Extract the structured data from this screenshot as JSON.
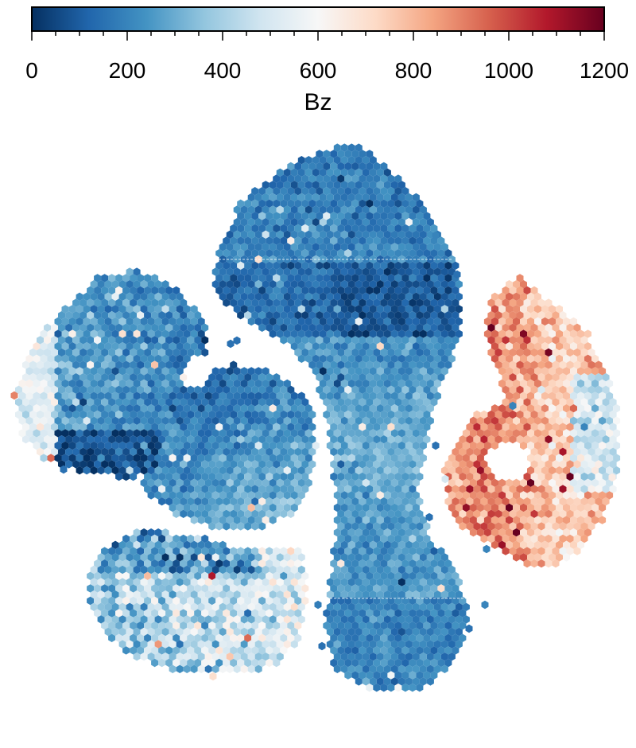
{
  "chart_data": {
    "type": "heatmap",
    "subtype": "hexbin-embedding",
    "title": "",
    "xlabel": "",
    "ylabel": "",
    "colorbar": {
      "label": "Bz",
      "orientation": "horizontal",
      "placement": "top",
      "range": [
        0,
        1200
      ],
      "ticks": [
        0,
        200,
        400,
        600,
        800,
        1000,
        1200
      ],
      "tick_labels": [
        "0",
        "200",
        "400",
        "600",
        "800",
        "1000",
        "1200"
      ],
      "colormap": "RdBu_r",
      "stops": [
        "#053061",
        "#2166ac",
        "#4393c3",
        "#92c5de",
        "#d1e5f0",
        "#f7f7f7",
        "#fddbc7",
        "#f4a582",
        "#d6604d",
        "#b2182b",
        "#67001f"
      ]
    },
    "axes_visible": false,
    "grid": false,
    "clusters": [
      {
        "name": "",
        "mean_value": 180,
        "spread": 110
      },
      {
        "name": "",
        "mean_value": 230,
        "spread": 150
      },
      {
        "name": "",
        "mean_value": 210,
        "spread": 130
      },
      {
        "name": "",
        "mean_value": 470,
        "spread": 260
      },
      {
        "name": "",
        "mean_value": 820,
        "spread": 200
      }
    ]
  }
}
